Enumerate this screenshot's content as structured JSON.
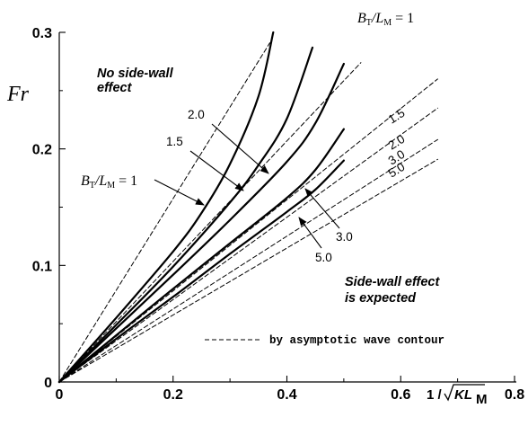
{
  "chart_data": {
    "type": "line",
    "ylabel": "Fr",
    "xlabel": {
      "lead": "1 /",
      "main": "KL",
      "sub": "M"
    },
    "xlim": [
      0,
      0.8
    ],
    "ylim": [
      0,
      0.3
    ],
    "x_ticks": [
      {
        "value": 0,
        "label": "0"
      },
      {
        "value": 0.2,
        "label": "0.2"
      },
      {
        "value": 0.4,
        "label": "0.4"
      },
      {
        "value": 0.6,
        "label": "0.6"
      },
      {
        "value": 0.8,
        "label": "0.8"
      }
    ],
    "y_ticks": [
      {
        "value": 0,
        "label": "0"
      },
      {
        "value": 0.1,
        "label": "0.1"
      },
      {
        "value": 0.2,
        "label": "0.2"
      },
      {
        "value": 0.3,
        "label": "0.3"
      }
    ],
    "series": [
      {
        "name": "BT/LM = 1",
        "style": "solid",
        "x": [
          0,
          0.1,
          0.2,
          0.25,
          0.3,
          0.35,
          0.376
        ],
        "y": [
          0,
          0.055,
          0.112,
          0.145,
          0.187,
          0.245,
          0.3
        ]
      },
      {
        "name": "1.5",
        "style": "solid",
        "x": [
          0,
          0.1,
          0.2,
          0.3,
          0.35,
          0.4,
          0.445
        ],
        "y": [
          0,
          0.049,
          0.099,
          0.154,
          0.186,
          0.226,
          0.287
        ]
      },
      {
        "name": "2.0",
        "style": "solid",
        "x": [
          0,
          0.1,
          0.2,
          0.3,
          0.4,
          0.45,
          0.5
        ],
        "y": [
          0,
          0.046,
          0.092,
          0.139,
          0.189,
          0.222,
          0.273
        ]
      },
      {
        "name": "3.0",
        "style": "solid",
        "x": [
          0,
          0.1,
          0.2,
          0.3,
          0.4,
          0.45,
          0.5
        ],
        "y": [
          0,
          0.04,
          0.08,
          0.119,
          0.158,
          0.182,
          0.217
        ]
      },
      {
        "name": "5.0",
        "style": "solid",
        "x": [
          0,
          0.1,
          0.2,
          0.3,
          0.4,
          0.45,
          0.5
        ],
        "y": [
          0,
          0.037,
          0.073,
          0.11,
          0.146,
          0.165,
          0.19
        ]
      },
      {
        "name": "1",
        "style": "dashed",
        "x": [
          0,
          0.37
        ],
        "y": [
          0,
          0.291
        ]
      },
      {
        "name": "1.5",
        "style": "dashed",
        "x": [
          0,
          0.53
        ],
        "y": [
          0,
          0.274
        ]
      },
      {
        "name": "2.0",
        "style": "dashed",
        "x": [
          0,
          0.665
        ],
        "y": [
          0,
          0.26
        ]
      },
      {
        "name": "2.0",
        "style": "dashed",
        "x": [
          0,
          0.665
        ],
        "y": [
          0,
          0.235
        ]
      },
      {
        "name": "3.0",
        "style": "dashed",
        "x": [
          0,
          0.665
        ],
        "y": [
          0,
          0.208
        ]
      },
      {
        "name": "5.0",
        "style": "dashed",
        "x": [
          0,
          0.665
        ],
        "y": [
          0,
          0.191
        ]
      }
    ],
    "annotations": {
      "top_label": {
        "main": "B",
        "sub1": "T",
        "mid": "/L",
        "sub2": "M",
        "rest": " = 1"
      },
      "left_label": {
        "main": "B",
        "sub1": "T",
        "mid": "/L",
        "sub2": "M",
        "rest": " = 1"
      },
      "no_effect_line1": "No side-wall",
      "no_effect_line2": "effect",
      "effect_line1": "Side-wall effect",
      "effect_line2": "is expected",
      "dash_labels": [
        "1.5",
        "2.0",
        "3.0",
        "5.0"
      ],
      "arrow_labels": [
        "2.0",
        "1.5",
        "3.0",
        "5.0"
      ],
      "legend_text": "by asymptotic wave contour"
    }
  }
}
